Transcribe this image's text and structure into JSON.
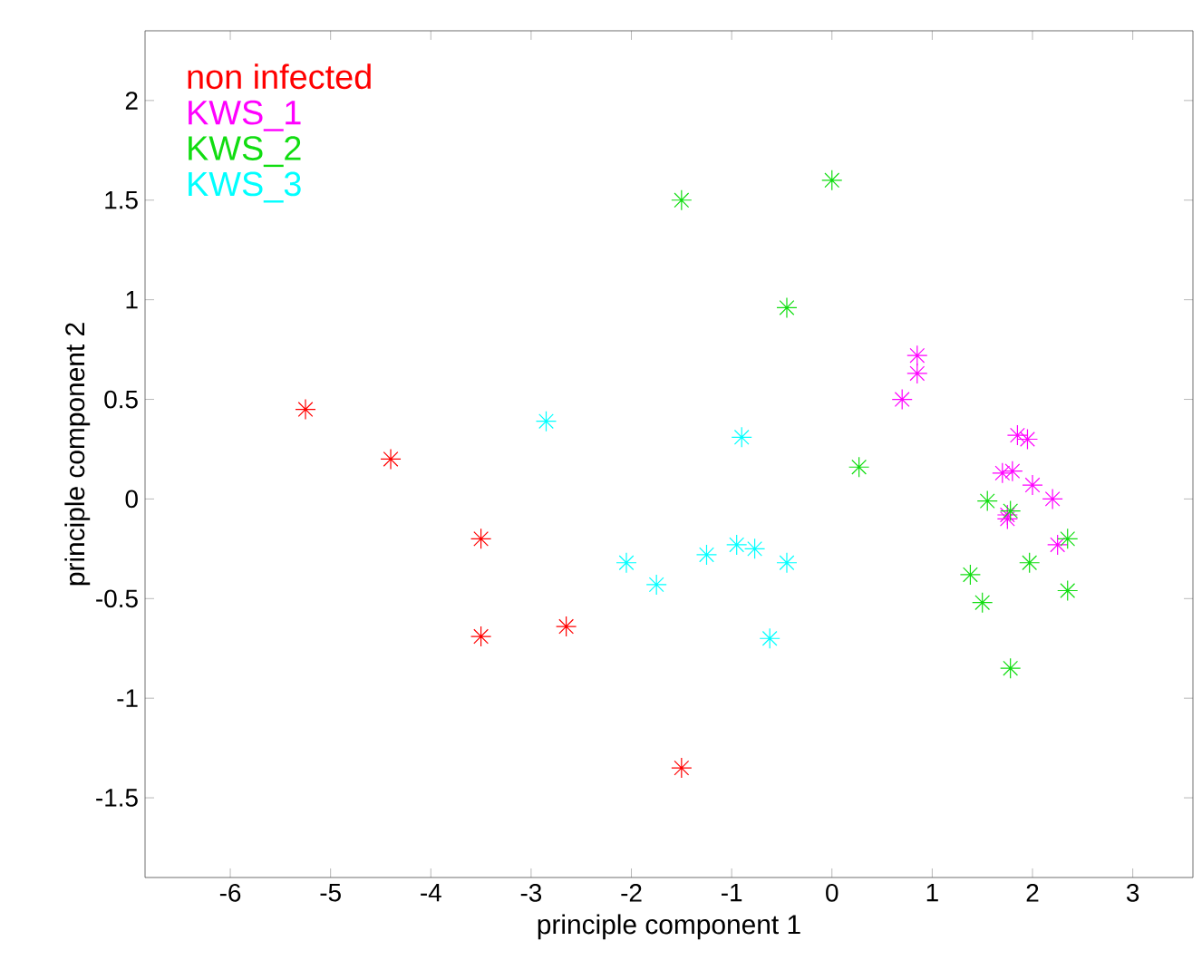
{
  "chart_data": {
    "type": "scatter",
    "xlabel": "principle component 1",
    "ylabel": "principle component 2",
    "xlim": [
      -6.85,
      3.6
    ],
    "ylim": [
      -1.9,
      2.35
    ],
    "xticks": [
      -6,
      -5,
      -4,
      -3,
      -2,
      -1,
      0,
      1,
      2,
      3
    ],
    "yticks": [
      -1.5,
      -1,
      -0.5,
      0,
      0.5,
      1,
      1.5,
      2
    ],
    "marker": "cross",
    "legend": "top left",
    "grid": false,
    "series": [
      {
        "name": "non infected",
        "color": "#ff0000",
        "x": [
          -5.25,
          -4.4,
          -3.5,
          -3.5,
          -2.65,
          -1.5
        ],
        "values": [
          0.45,
          0.2,
          -0.2,
          -0.69,
          -0.64,
          -1.35
        ]
      },
      {
        "name": "KWS_1",
        "color": "#ff00ff",
        "x": [
          0.7,
          0.85,
          0.85,
          1.85,
          1.95,
          1.7,
          1.8,
          2.0,
          2.2,
          1.75,
          1.75,
          2.25
        ],
        "values": [
          0.5,
          0.72,
          0.63,
          0.32,
          0.3,
          0.13,
          0.14,
          0.07,
          0.0,
          -0.08,
          -0.1,
          -0.23
        ]
      },
      {
        "name": "KWS_2",
        "color": "#11dd11",
        "x": [
          -1.5,
          0,
          -0.45,
          0.27,
          1.55,
          1.78,
          1.38,
          1.5,
          1.97,
          2.35,
          2.35,
          1.78
        ],
        "values": [
          1.5,
          1.6,
          0.96,
          0.16,
          -0.01,
          -0.06,
          -0.38,
          -0.52,
          -0.32,
          -0.2,
          -0.46,
          -0.85
        ]
      },
      {
        "name": "KWS_3",
        "color": "#00ffff",
        "x": [
          -2.85,
          -0.9,
          -2.05,
          -1.75,
          -1.25,
          -0.95,
          -0.77,
          -0.45,
          -0.62
        ],
        "values": [
          0.39,
          0.31,
          -0.32,
          -0.43,
          -0.28,
          -0.23,
          -0.25,
          -0.32,
          -0.7
        ]
      }
    ]
  }
}
